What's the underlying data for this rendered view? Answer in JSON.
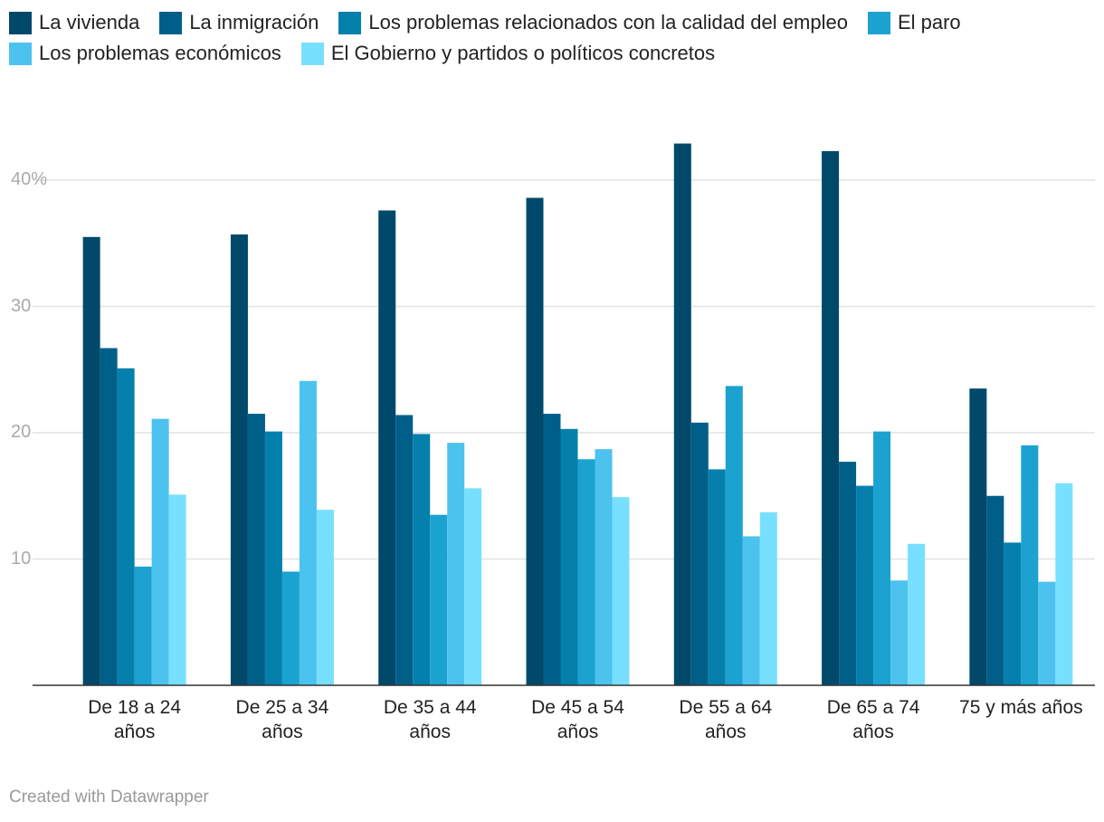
{
  "chart_data": {
    "type": "bar",
    "categories": [
      "De 18 a 24 años",
      "De 25 a 34 años",
      "De 35 a 44 años",
      "De 45 a 54 años",
      "De 55 a 64 años",
      "De 65 a 74 años",
      "75 y más años"
    ],
    "series": [
      {
        "name": "La vivienda",
        "color": "#00496b",
        "values": [
          35.5,
          35.7,
          37.6,
          38.6,
          42.9,
          42.3,
          23.5
        ]
      },
      {
        "name": "La inmigración",
        "color": "#005f88",
        "values": [
          26.7,
          21.5,
          21.4,
          21.5,
          20.8,
          17.7,
          15.0
        ]
      },
      {
        "name": "Los problemas relacionados con la calidad del empleo",
        "color": "#0580ad",
        "values": [
          25.1,
          20.1,
          19.9,
          20.3,
          17.1,
          15.8,
          11.3
        ]
      },
      {
        "name": "El paro",
        "color": "#1ba2d0",
        "values": [
          9.4,
          9.0,
          13.5,
          17.9,
          23.7,
          20.1,
          19.0
        ]
      },
      {
        "name": "Los problemas económicos",
        "color": "#4cc2ef",
        "values": [
          21.1,
          24.1,
          19.2,
          18.7,
          11.8,
          8.3,
          8.2
        ]
      },
      {
        "name": "El Gobierno y partidos o políticos concretos",
        "color": "#78e0ff",
        "values": [
          15.1,
          13.9,
          15.6,
          14.9,
          13.7,
          11.2,
          16.0
        ]
      }
    ],
    "ylim": [
      0,
      45
    ],
    "yticks": [
      10,
      20,
      30,
      {
        "value": 40,
        "label": "40%"
      }
    ],
    "grid": true,
    "credit": "Created with Datawrapper"
  }
}
